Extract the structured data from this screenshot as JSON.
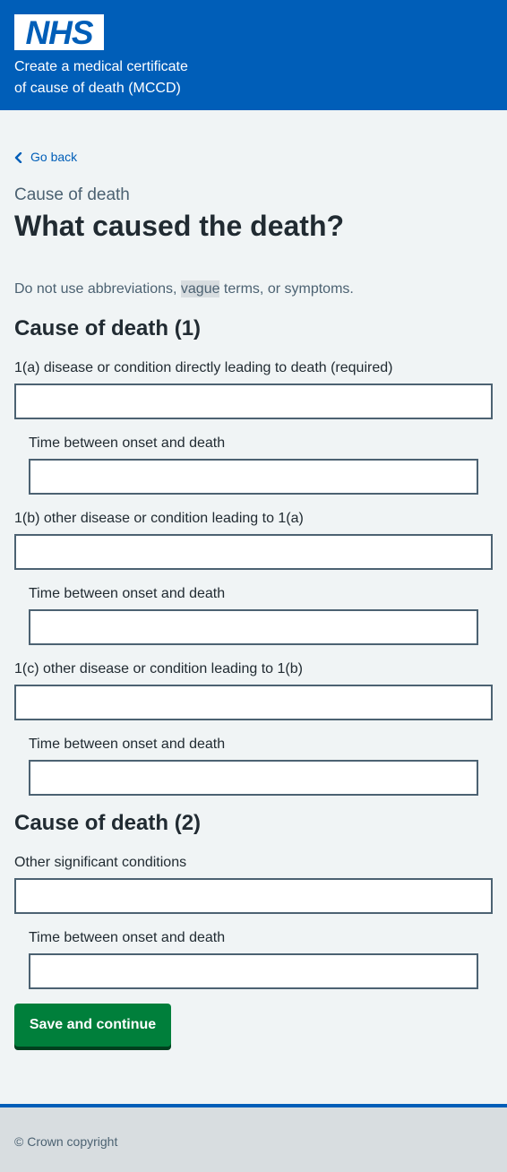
{
  "header": {
    "logo_text": "NHS",
    "service_name_line1": "Create a medical certificate",
    "service_name_line2": "of cause of death (MCCD)",
    "brand_color": "#005eb8"
  },
  "back_link": {
    "label": "Go back",
    "icon": "chevron-left-icon"
  },
  "page": {
    "caption": "Cause of death",
    "title": "What caused the death?",
    "hint_before": "Do not use abbreviations, ",
    "hint_highlight": "vague",
    "hint_after": " terms, or symptoms."
  },
  "section1": {
    "heading": "Cause of death (1)",
    "fields": [
      {
        "label": "1(a) disease or condition directly leading to death (required)",
        "value": ""
      },
      {
        "label": "Time between onset and death",
        "value": ""
      },
      {
        "label": "1(b) other disease or condition leading to 1(a)",
        "value": ""
      },
      {
        "label": "Time between onset and death",
        "value": ""
      },
      {
        "label": "1(c) other disease or condition leading to 1(b)",
        "value": ""
      },
      {
        "label": "Time between onset and death",
        "value": ""
      }
    ]
  },
  "section2": {
    "heading": "Cause of death (2)",
    "fields": [
      {
        "label": "Other significant conditions",
        "value": ""
      },
      {
        "label": "Time between onset and death",
        "value": ""
      }
    ]
  },
  "actions": {
    "submit_label": "Save and continue",
    "submit_color": "#007f3b"
  },
  "footer": {
    "copyright": "© Crown copyright"
  }
}
